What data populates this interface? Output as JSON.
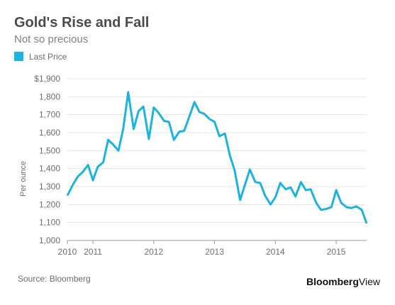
{
  "chart_data": {
    "type": "line",
    "title": "Gold's Rise and Fall",
    "subtitle": "Not so precious",
    "y_label": "Per ounce",
    "source": "Source: Bloomberg",
    "x": [
      2010.58,
      2010.67,
      2010.75,
      2010.83,
      2010.92,
      2011,
      2011.08,
      2011.17,
      2011.25,
      2011.33,
      2011.42,
      2011.5,
      2011.58,
      2011.67,
      2011.75,
      2011.83,
      2011.92,
      2012,
      2012.08,
      2012.17,
      2012.25,
      2012.33,
      2012.42,
      2012.5,
      2012.58,
      2012.67,
      2012.75,
      2012.83,
      2012.92,
      2013,
      2013.08,
      2013.17,
      2013.25,
      2013.33,
      2013.42,
      2013.5,
      2013.58,
      2013.67,
      2013.75,
      2013.83,
      2013.92,
      2014,
      2014.08,
      2014.17,
      2014.25,
      2014.33,
      2014.42,
      2014.5,
      2014.58,
      2014.67,
      2014.75,
      2014.83,
      2014.92,
      2015,
      2015.08,
      2015.17,
      2015.25,
      2015.33,
      2015.42,
      2015.5
    ],
    "series": [
      {
        "name": "Last Price",
        "color": "#1cb3e1",
        "values": [
          1250,
          1310,
          1355,
          1380,
          1420,
          1335,
          1410,
          1435,
          1560,
          1535,
          1500,
          1625,
          1825,
          1620,
          1720,
          1745,
          1565,
          1740,
          1710,
          1665,
          1660,
          1560,
          1605,
          1610,
          1685,
          1770,
          1715,
          1705,
          1675,
          1660,
          1580,
          1595,
          1475,
          1390,
          1225,
          1310,
          1395,
          1325,
          1320,
          1250,
          1200,
          1240,
          1320,
          1285,
          1295,
          1245,
          1325,
          1280,
          1285,
          1210,
          1170,
          1175,
          1185,
          1280,
          1210,
          1185,
          1180,
          1190,
          1170,
          1095
        ]
      }
    ],
    "xlim": [
      2010.58,
      2015.5
    ],
    "xticks": [
      {
        "value": 2010.58,
        "label": "2010"
      },
      2011,
      2012,
      2013,
      2014,
      2015
    ],
    "ylim": [
      1000,
      1900
    ],
    "yticks": [
      {
        "value": 1000,
        "label": "1,000"
      },
      {
        "value": 1100,
        "label": "1,100"
      },
      {
        "value": 1200,
        "label": "1,200"
      },
      {
        "value": 1300,
        "label": "1,300"
      },
      {
        "value": 1400,
        "label": "1,400"
      },
      {
        "value": 1500,
        "label": "1,500"
      },
      {
        "value": 1600,
        "label": "1,600"
      },
      {
        "value": 1700,
        "label": "1,700"
      },
      {
        "value": 1800,
        "label": "1,800"
      },
      {
        "value": 1900,
        "label": "$1,900"
      }
    ],
    "grid": true,
    "legend": "top-left"
  },
  "logo": {
    "bold": "Bloomberg",
    "light": "View"
  }
}
